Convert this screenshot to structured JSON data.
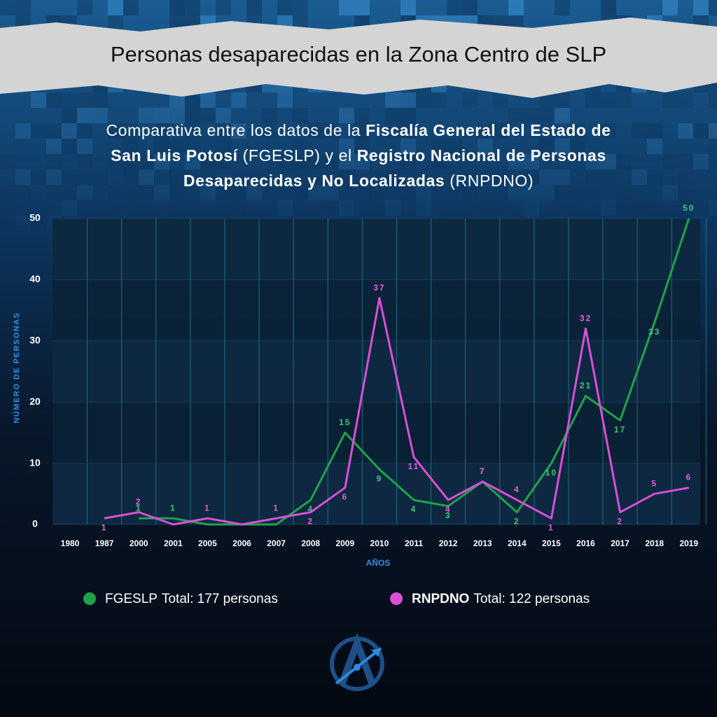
{
  "chart_data": {
    "type": "line",
    "title": "Personas desaparecidas en la Zona Centro de SLP",
    "subtitle_lines": [
      [
        {
          "text": "Comparativa entre los datos de la ",
          "bold": false
        },
        {
          "text": "Fiscalía General del Estado de",
          "bold": true
        }
      ],
      [
        {
          "text": "San Luis Potosí",
          "bold": true
        },
        {
          "text": " (FGESLP) y el ",
          "bold": false
        },
        {
          "text": "Registro Nacional de Personas",
          "bold": true
        }
      ],
      [
        {
          "text": "Desaparecidas y No Localizadas",
          "bold": true
        },
        {
          "text": " (RNPDNO)",
          "bold": false
        }
      ]
    ],
    "y_label": "NÚMERO DE PERSONAS",
    "x_label": "AÑOS",
    "categories": [
      "1980",
      "1987",
      "2000",
      "2001",
      "2005",
      "2006",
      "2007",
      "2008",
      "2009",
      "2010",
      "2011",
      "2012",
      "2013",
      "2014",
      "2015",
      "2016",
      "2017",
      "2018",
      "2019"
    ],
    "series": [
      {
        "name": "FGESLP",
        "total_label": "Total: 177 personas",
        "color": "#1fa34a",
        "label_color": "#3ec77a",
        "values": [
          null,
          null,
          1,
          1,
          0,
          0,
          0,
          4,
          15,
          9,
          4,
          3,
          7,
          2,
          10,
          21,
          17,
          33,
          50
        ],
        "value_labels": [
          null,
          null,
          "1",
          "1",
          null,
          null,
          null,
          "4",
          "15",
          "9",
          "4",
          "3",
          "7",
          "2",
          "10",
          "21",
          "17",
          "33",
          "50"
        ]
      },
      {
        "name": "RNPDNO",
        "total_label": "Total: 122 personas",
        "color": "#d94fd6",
        "label_color": "#e060dc",
        "values": [
          null,
          1,
          2,
          0,
          1,
          0,
          1,
          2,
          6,
          37,
          11,
          4,
          7,
          4,
          1,
          32,
          2,
          5,
          6
        ],
        "value_labels": [
          null,
          "1",
          "2",
          null,
          "1",
          null,
          "1",
          "2",
          "6",
          "37",
          "11",
          "4",
          "7",
          "4",
          "1",
          "32",
          "2",
          "5",
          "6"
        ]
      }
    ],
    "ylim": [
      0,
      50
    ],
    "yticks": [
      0,
      10,
      20,
      30,
      40,
      50
    ],
    "grid": true
  }
}
